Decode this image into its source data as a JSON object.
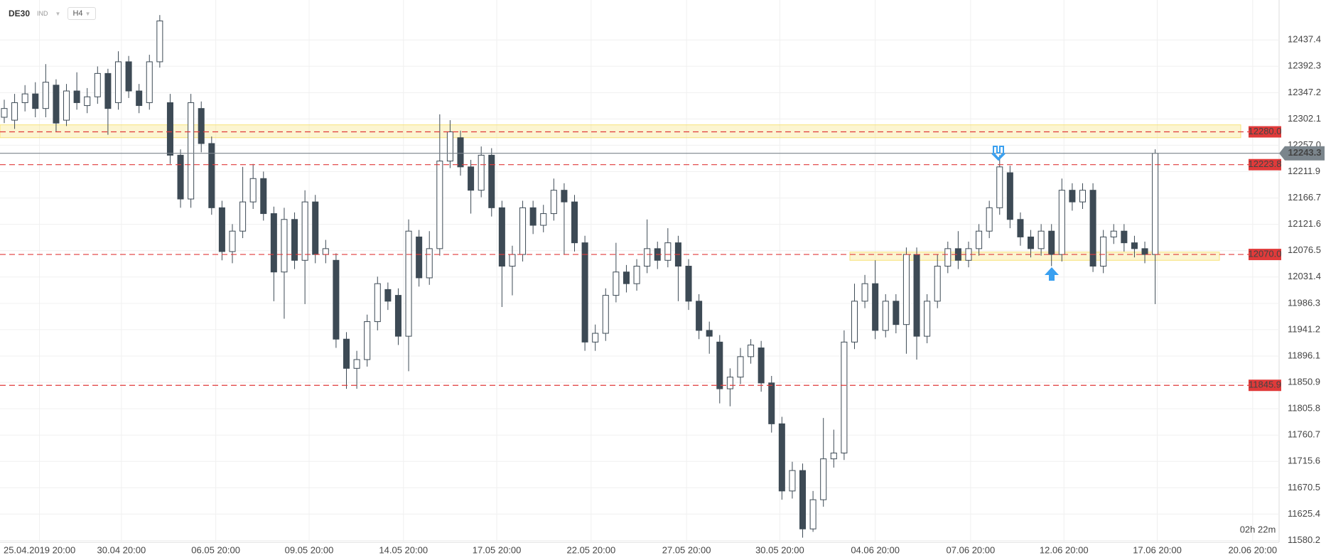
{
  "chart_data": {
    "type": "candlestick",
    "symbol": "DE30",
    "instrument_type": "IND",
    "timeframe": "H4",
    "up_color": "#ffffff",
    "down_color": "#3d4a55",
    "ylim": [
      11577.2,
      12505.8
    ],
    "yticks": [
      12437.4,
      12392.3,
      12347.2,
      12302.1,
      {
        "value": 12257,
        "label": "12257.0"
      },
      12211.9,
      12166.7,
      12121.6,
      12076.5,
      12031.4,
      11986.3,
      11941.2,
      11896.1,
      11850.9,
      11805.8,
      11760.7,
      11715.6,
      11670.5,
      11625.4,
      11580.2
    ],
    "xlim": [
      -0.41,
      122.95
    ],
    "xticks": [
      {
        "value": 3.4,
        "label": "25.04.2019 20:00"
      },
      {
        "value": 11.3,
        "label": "30.04 20:00"
      },
      {
        "value": 20.4,
        "label": "06.05 20:00"
      },
      {
        "value": 29.4,
        "label": "09.05 20:00"
      },
      {
        "value": 38.5,
        "label": "14.05 20:00"
      },
      {
        "value": 47.5,
        "label": "17.05 20:00"
      },
      {
        "value": 56.6,
        "label": "22.05 20:00"
      },
      {
        "value": 65.8,
        "label": "27.05 20:00"
      },
      {
        "value": 74.8,
        "label": "30.05 20:00"
      },
      {
        "value": 84.0,
        "label": "04.06 20:00"
      },
      {
        "value": 93.2,
        "label": "07.06 20:00"
      },
      {
        "value": 102.2,
        "label": "12.06 20:00"
      },
      {
        "value": 111.2,
        "label": "17.06 20:00"
      },
      {
        "value": 120.4,
        "label": "20.06 20:00"
      }
    ],
    "grid": true,
    "open": [
      12305,
      12300,
      12330,
      12345,
      12320,
      12360,
      12300,
      12350,
      12325,
      12340,
      12380,
      12330,
      12400,
      12350,
      12330,
      12400,
      12330,
      12240,
      12165,
      12320,
      12260,
      12150,
      12075,
      12110,
      12160,
      12200,
      12140,
      12040,
      12130,
      12060,
      12160,
      12070,
      12060,
      11925,
      11875,
      11890,
      11955,
      12010,
      12000,
      11930,
      12100,
      12030,
      12080,
      12230,
      12270,
      12220,
      12180,
      12240,
      12150,
      12050,
      12070,
      12150,
      12120,
      12140,
      12180,
      12160,
      12090,
      11920,
      11935,
      12000,
      12040,
      12020,
      12050,
      12080,
      12060,
      12090,
      12050,
      11990,
      11940,
      11920,
      11840,
      11860,
      11895,
      11910,
      11850,
      11780,
      11665,
      11700,
      11600,
      11650,
      11720,
      11730,
      11920,
      11990,
      12020,
      11940,
      11990,
      11950,
      12070,
      11930,
      11990,
      12050,
      12080,
      12060,
      12080,
      12110,
      12150,
      12210,
      12130,
      12100,
      12080,
      12110,
      12070,
      12180,
      12160,
      12180,
      12050,
      12100,
      12110,
      12090,
      12080,
      12070
    ],
    "high": [
      12335,
      12345,
      12360,
      12365,
      12396,
      12370,
      12362,
      12382,
      12355,
      12392,
      12388,
      12418,
      12410,
      12362,
      12412,
      12480,
      12345,
      12250,
      12345,
      12332,
      12272,
      12162,
      12122,
      12220,
      12225,
      12212,
      12152,
      12150,
      12142,
      12180,
      12172,
      12095,
      12072,
      11937,
      11905,
      11967,
      12032,
      12022,
      12012,
      12130,
      12112,
      12110,
      12310,
      12300,
      12282,
      12232,
      12255,
      12252,
      12162,
      12085,
      12162,
      12162,
      12155,
      12200,
      12192,
      12172,
      12102,
      11950,
      12012,
      12090,
      12052,
      12062,
      12130,
      12092,
      12115,
      12102,
      12062,
      12002,
      11955,
      11932,
      11875,
      11910,
      11925,
      11922,
      11862,
      11792,
      11715,
      11712,
      11665,
      11790,
      11770,
      11940,
      12020,
      12035,
      12060,
      12002,
      12002,
      12082,
      12082,
      12002,
      12070,
      12092,
      12110,
      12092,
      12122,
      12162,
      12240,
      12222,
      12142,
      12112,
      12122,
      12122,
      12200,
      12192,
      12192,
      12192,
      12112,
      12122,
      12122,
      12102,
      12092,
      12250
    ],
    "low": [
      12295,
      12285,
      12315,
      12305,
      12305,
      12280,
      12290,
      12318,
      12312,
      12328,
      12275,
      12318,
      12338,
      12312,
      12318,
      12390,
      12225,
      12150,
      12150,
      12245,
      12138,
      12060,
      12055,
      12098,
      12148,
      12128,
      11990,
      11960,
      12045,
      11985,
      12055,
      12055,
      11910,
      11840,
      11840,
      11878,
      11940,
      11975,
      11915,
      11870,
      12015,
      12018,
      12068,
      12218,
      12205,
      12140,
      12168,
      12135,
      11980,
      12000,
      12058,
      12105,
      12108,
      12128,
      12070,
      12075,
      11905,
      11905,
      11922,
      11988,
      12005,
      12008,
      12038,
      12045,
      12048,
      11990,
      11975,
      11925,
      11900,
      11815,
      11810,
      11848,
      11883,
      11835,
      11765,
      11650,
      11652,
      11585,
      11595,
      11638,
      11705,
      11718,
      11908,
      11978,
      11925,
      11928,
      11935,
      11900,
      11890,
      11918,
      11978,
      12038,
      12045,
      12048,
      12068,
      12098,
      12138,
      12115,
      12085,
      12065,
      12068,
      12050,
      12058,
      12145,
      12148,
      12040,
      12038,
      12088,
      12075,
      12065,
      12055,
      11985
    ],
    "close": [
      12320,
      12330,
      12345,
      12320,
      12365,
      12295,
      12350,
      12330,
      12340,
      12380,
      12320,
      12400,
      12350,
      12325,
      12400,
      12470,
      12240,
      12165,
      12330,
      12260,
      12150,
      12075,
      12110,
      12160,
      12200,
      12140,
      12040,
      12130,
      12060,
      12160,
      12070,
      12080,
      11925,
      11875,
      11890,
      11955,
      12020,
      11990,
      11930,
      12110,
      12030,
      12080,
      12230,
      12280,
      12220,
      12180,
      12240,
      12150,
      12050,
      12070,
      12150,
      12120,
      12140,
      12180,
      12160,
      12090,
      11920,
      11935,
      12000,
      12040,
      12020,
      12050,
      12080,
      12060,
      12090,
      12050,
      11990,
      11940,
      11930,
      11840,
      11860,
      11895,
      11915,
      11850,
      11780,
      11665,
      11700,
      11600,
      11650,
      11720,
      11730,
      11920,
      11990,
      12020,
      11940,
      11990,
      11950,
      12070,
      11930,
      11990,
      12050,
      12080,
      12060,
      12080,
      12110,
      12150,
      12220,
      12130,
      12100,
      12080,
      12110,
      12070,
      12180,
      12160,
      12180,
      12050,
      12100,
      12110,
      12090,
      12080,
      12070,
      12243.3
    ],
    "levels": [
      {
        "value": 12280,
        "label": "12280.0",
        "color": "#e03a3a"
      },
      {
        "value": 12223.8,
        "label": "12223.8",
        "color": "#e03a3a"
      },
      {
        "value": 12070,
        "label": "12070.0",
        "color": "#e03a3a"
      },
      {
        "value": 11845.9,
        "label": "11845.9",
        "color": "#e03a3a"
      }
    ],
    "zones": [
      {
        "low": 12270,
        "high": 12292
      },
      {
        "low": 12060,
        "high": 12074
      }
    ],
    "zone_color": "#f7e27a",
    "last_price": 12243.3,
    "last_price_color": "#7b858c",
    "timer": "02h 22m",
    "timer_color": "#f0a830"
  }
}
